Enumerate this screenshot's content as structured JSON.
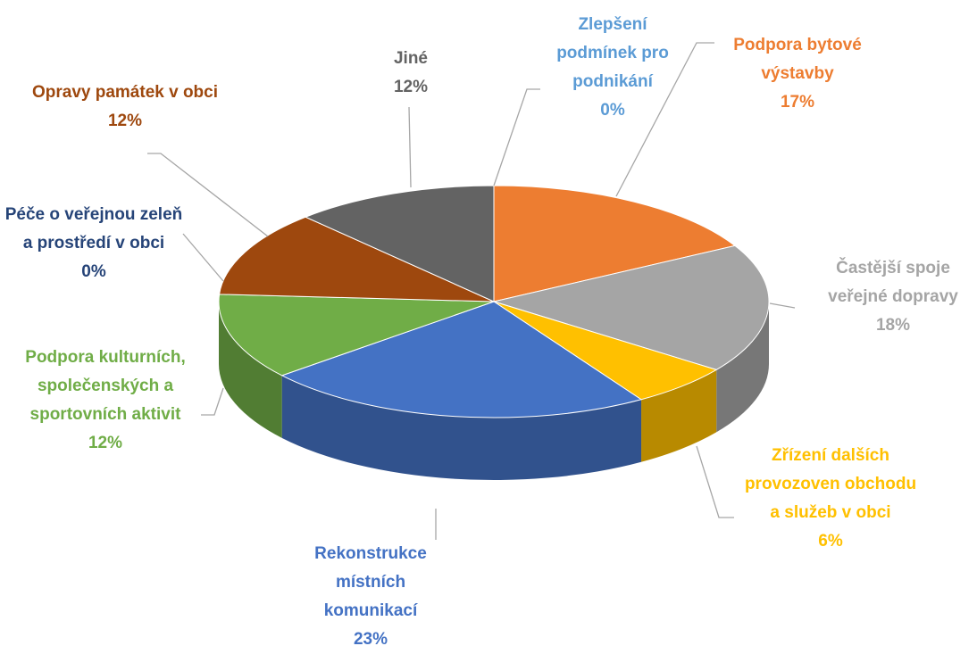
{
  "chart_data": {
    "type": "pie",
    "categories": [
      "Zlepšení podmínek pro podnikání",
      "Podpora bytové výstavby",
      "Častější spoje veřejné dopravy",
      "Zřízení dalších provozoven obchodu a služeb v obci",
      "Rekonstrukce místních komunikací",
      "Podpora kulturních, společenských a sportovních aktivit",
      "Péče o veřejnou zeleň a prostředí v obci",
      "Opravy památek v obci",
      "Jiné"
    ],
    "values": [
      0,
      17,
      18,
      6,
      23,
      12,
      0,
      12,
      12
    ],
    "value_labels": [
      "0%",
      "17%",
      "18%",
      "6%",
      "23%",
      "12%",
      "0%",
      "12%",
      "12%"
    ],
    "colors": [
      "#5b9bd5",
      "#ed7d31",
      "#a5a5a5",
      "#ffc000",
      "#4472c4",
      "#70ad47",
      "#264478",
      "#9e480e",
      "#636363"
    ]
  }
}
